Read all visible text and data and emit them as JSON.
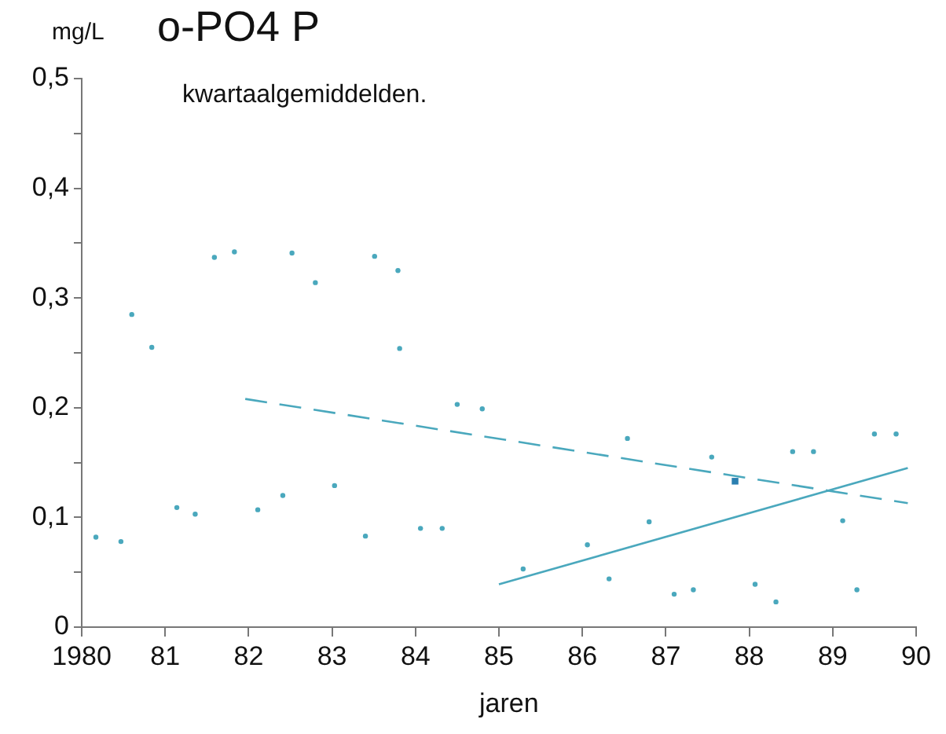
{
  "chart_data": {
    "type": "scatter",
    "title": "o-PO4 P",
    "subtitle": "kwartaalgemiddelden.",
    "xlabel": "jaren",
    "ylabel": "mg/L",
    "xlim": [
      1980,
      1990
    ],
    "ylim": [
      0,
      0.5
    ],
    "xticks": [
      1980,
      {
        "value": 1981,
        "label": "81"
      },
      {
        "value": 1982,
        "label": "82"
      },
      {
        "value": 1983,
        "label": "83"
      },
      {
        "value": 1984,
        "label": "84"
      },
      {
        "value": 1985,
        "label": "85"
      },
      {
        "value": 1986,
        "label": "86"
      },
      {
        "value": 1987,
        "label": "87"
      },
      {
        "value": 1988,
        "label": "88"
      },
      {
        "value": 1989,
        "label": "89"
      },
      {
        "value": 1990,
        "label": "90"
      }
    ],
    "yticks": [
      0,
      {
        "value": 0.05,
        "label": null
      },
      {
        "value": 0.1,
        "label": "0,1"
      },
      {
        "value": 0.15,
        "label": null
      },
      {
        "value": 0.2,
        "label": "0,2"
      },
      {
        "value": 0.25,
        "label": null
      },
      {
        "value": 0.3,
        "label": "0,3"
      },
      {
        "value": 0.35,
        "label": null
      },
      {
        "value": 0.4,
        "label": "0,4"
      },
      {
        "value": 0.45,
        "label": null
      },
      {
        "value": 0.5,
        "label": "0,5"
      }
    ],
    "grid": false,
    "legend": false,
    "series": [
      {
        "type": "scatter",
        "color": "#4aa8bd",
        "marker": "circle",
        "x": [
          1980.17,
          1980.47,
          1980.6,
          1980.84,
          1981.14,
          1981.36,
          1981.59,
          1981.83,
          1982.11,
          1982.41,
          1982.52,
          1982.8,
          1983.03,
          1983.4,
          1983.51,
          1983.79,
          1983.81,
          1984.06,
          1984.32,
          1984.5,
          1984.8,
          1985.29,
          1986.06,
          1986.32,
          1986.54,
          1986.8,
          1987.1,
          1987.33,
          1987.55,
          1988.07,
          1988.32,
          1988.52,
          1988.77,
          1989.12,
          1989.29,
          1989.5,
          1989.76
        ],
        "values": [
          0.082,
          0.078,
          0.285,
          0.255,
          0.109,
          0.103,
          0.337,
          0.342,
          0.107,
          0.12,
          0.341,
          0.314,
          0.129,
          0.083,
          0.338,
          0.325,
          0.254,
          0.09,
          0.09,
          0.203,
          0.199,
          0.053,
          0.075,
          0.044,
          0.172,
          0.096,
          0.03,
          0.034,
          0.155,
          0.039,
          0.023,
          0.16,
          0.16,
          0.097,
          0.034,
          0.176,
          0.176
        ]
      },
      {
        "type": "scatter",
        "color": "#2a7fb0",
        "marker": "square",
        "x": [
          1987.83
        ],
        "values": [
          0.133
        ]
      },
      {
        "type": "line",
        "color": "#4aa8bd",
        "line_style": "dashed",
        "x": [
          1981.96,
          1989.9
        ],
        "values": [
          0.208,
          0.113
        ]
      },
      {
        "type": "line",
        "color": "#4aa8bd",
        "line_style": "solid",
        "x": [
          1985.0,
          1989.9
        ],
        "values": [
          0.039,
          0.145
        ]
      }
    ]
  }
}
